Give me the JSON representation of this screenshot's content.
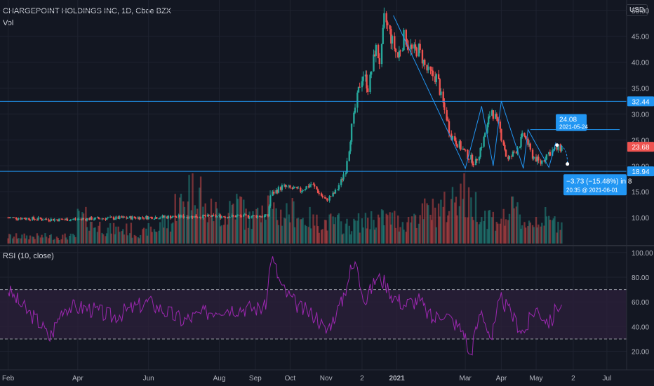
{
  "header": {
    "symbol": "CHARGEPOINT HOLDINGS INC",
    "interval": "1D",
    "exchange": "Cboe BZX",
    "volume_label": "Vol",
    "currency": "USD"
  },
  "colors": {
    "background": "#131722",
    "grid": "#1f2330",
    "text": "#b2b5be",
    "up": "#26a69a",
    "down": "#ef5350",
    "hline": "#2196f3",
    "rsi": "#9c27b0",
    "rsi_band": "#2a1f3a",
    "label_blue": "#2196f3",
    "label_red": "#ef5350"
  },
  "chart_data": [
    {
      "type": "candlestick",
      "name": "price",
      "ylim": [
        5,
        52
      ],
      "y_ticks": [
        10,
        15,
        20,
        25,
        30,
        35,
        40,
        45,
        50
      ],
      "x_ticks": [
        "Feb",
        "Apr",
        "Jun",
        "Aug",
        "Sep",
        "Oct",
        "Nov",
        "2",
        "2021",
        "Mar",
        "Apr",
        "May",
        "2",
        "Jul"
      ],
      "close_series": [
        [
          "2020-02-01",
          10.0
        ],
        [
          "2020-03-15",
          9.6
        ],
        [
          "2020-05-01",
          9.9
        ],
        [
          "2020-07-01",
          10.2
        ],
        [
          "2020-09-12",
          10.3
        ],
        [
          "2020-09-15",
          14.5
        ],
        [
          "2020-09-25",
          16.0
        ],
        [
          "2020-10-10",
          15.2
        ],
        [
          "2020-10-20",
          16.5
        ],
        [
          "2020-11-01",
          13.3
        ],
        [
          "2020-11-10",
          15.0
        ],
        [
          "2020-11-18",
          19.0
        ],
        [
          "2020-11-22",
          25.0
        ],
        [
          "2020-11-28",
          33.0
        ],
        [
          "2020-12-03",
          38.0
        ],
        [
          "2020-12-08",
          35.0
        ],
        [
          "2020-12-14",
          43.0
        ],
        [
          "2020-12-18",
          40.0
        ],
        [
          "2020-12-22",
          48.5
        ],
        [
          "2020-12-27",
          45.0
        ],
        [
          "2021-01-02",
          41.0
        ],
        [
          "2021-01-08",
          45.0
        ],
        [
          "2021-01-15",
          42.0
        ],
        [
          "2021-01-20",
          42.5
        ],
        [
          "2021-01-28",
          38.0
        ],
        [
          "2021-02-05",
          37.0
        ],
        [
          "2021-02-10",
          32.0
        ],
        [
          "2021-02-17",
          26.0
        ],
        [
          "2021-02-24",
          24.0
        ],
        [
          "2021-03-03",
          22.0
        ],
        [
          "2021-03-10",
          20.5
        ],
        [
          "2021-03-17",
          25.0
        ],
        [
          "2021-03-24",
          31.0
        ],
        [
          "2021-03-31",
          27.0
        ],
        [
          "2021-04-07",
          21.0
        ],
        [
          "2021-04-14",
          23.0
        ],
        [
          "2021-04-21",
          26.0
        ],
        [
          "2021-04-28",
          22.0
        ],
        [
          "2021-05-05",
          20.5
        ],
        [
          "2021-05-12",
          22.5
        ],
        [
          "2021-05-24",
          23.68
        ]
      ],
      "volume_relative": [
        0.1,
        0.1,
        0.1,
        0.1,
        0.1,
        0.35,
        0.25,
        0.2,
        0.2,
        0.15,
        0.2,
        0.3,
        0.55,
        0.8,
        0.45,
        0.4,
        0.55,
        0.35,
        0.6,
        0.4,
        0.45,
        0.35,
        0.3,
        0.3,
        0.25,
        0.3,
        0.35,
        0.35,
        0.3,
        0.4,
        0.45,
        0.5,
        0.75,
        0.55,
        0.4,
        0.35,
        0.45,
        0.3,
        0.35,
        0.3,
        0.25
      ],
      "horizontal_lines": [
        32.44,
        18.94
      ],
      "right_labels": [
        {
          "value": 32.44,
          "text": "32.44",
          "color": "#2196f3"
        },
        {
          "value": 23.68,
          "text": "23.68",
          "color": "#ef5350"
        },
        {
          "value": 18.94,
          "text": "18.94",
          "color": "#2196f3"
        }
      ],
      "drawing_zigzag": [
        [
          "2020-12-29",
          49.0
        ],
        [
          "2021-03-01",
          19.5
        ],
        [
          "2021-03-15",
          31.5
        ],
        [
          "2021-03-25",
          20.0
        ],
        [
          "2021-04-01",
          32.5
        ],
        [
          "2021-04-20",
          19.5
        ],
        [
          "2021-04-24",
          27.0
        ],
        [
          "2021-05-12",
          19.7
        ],
        [
          "2021-05-18",
          24.5
        ]
      ],
      "resistance_segment": {
        "from": "2021-04-26",
        "to": "2021-07-12",
        "value": 27.0
      },
      "projection": {
        "from": [
          "2021-05-19",
          24.0
        ],
        "to": [
          "2021-05-28",
          20.35
        ],
        "pin": {
          "value": "24.08",
          "date": "2021-05-24"
        },
        "result": {
          "change": "−3.73 (−15.48%) in 8",
          "target": "20.35 @ 2021-06-01"
        }
      }
    },
    {
      "type": "line",
      "name": "rsi",
      "title": "RSI (10, close)",
      "ylim": [
        5,
        105
      ],
      "y_ticks": [
        20,
        40,
        60,
        80,
        100
      ],
      "overbought": 70,
      "oversold": 30,
      "values": [
        [
          "2020-02-01",
          70
        ],
        [
          "2020-02-15",
          55
        ],
        [
          "2020-03-01",
          42
        ],
        [
          "2020-03-08",
          30
        ],
        [
          "2020-03-20",
          56
        ],
        [
          "2020-04-10",
          55
        ],
        [
          "2020-05-01",
          48
        ],
        [
          "2020-06-01",
          60
        ],
        [
          "2020-07-01",
          45
        ],
        [
          "2020-08-01",
          55
        ],
        [
          "2020-09-10",
          55
        ],
        [
          "2020-09-15",
          97
        ],
        [
          "2020-09-25",
          70
        ],
        [
          "2020-10-10",
          55
        ],
        [
          "2020-10-25",
          48
        ],
        [
          "2020-11-01",
          35
        ],
        [
          "2020-11-15",
          60
        ],
        [
          "2020-11-22",
          85
        ],
        [
          "2020-11-28",
          91
        ],
        [
          "2020-12-05",
          60
        ],
        [
          "2020-12-15",
          80
        ],
        [
          "2020-12-22",
          76
        ],
        [
          "2020-12-28",
          66
        ],
        [
          "2021-01-08",
          58
        ],
        [
          "2021-01-20",
          62
        ],
        [
          "2021-02-01",
          45
        ],
        [
          "2021-02-10",
          52
        ],
        [
          "2021-02-20",
          43
        ],
        [
          "2021-03-01",
          35
        ],
        [
          "2021-03-05",
          14
        ],
        [
          "2021-03-15",
          54
        ],
        [
          "2021-03-24",
          30
        ],
        [
          "2021-04-01",
          63
        ],
        [
          "2021-04-14",
          44
        ],
        [
          "2021-04-21",
          35
        ],
        [
          "2021-04-26",
          46
        ],
        [
          "2021-05-01",
          55
        ],
        [
          "2021-05-08",
          48
        ],
        [
          "2021-05-14",
          43
        ],
        [
          "2021-05-20",
          58
        ],
        [
          "2021-05-24",
          55
        ]
      ]
    }
  ]
}
